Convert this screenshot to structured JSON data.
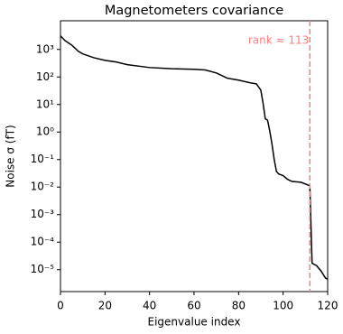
{
  "chart_data": {
    "type": "line",
    "title": "Magnetometers covariance",
    "xlabel": "Eigenvalue index",
    "ylabel": "Noise σ (fT)",
    "x": [
      0,
      2,
      5,
      8,
      10,
      15,
      20,
      25,
      30,
      40,
      50,
      60,
      65,
      70,
      75,
      80,
      85,
      88,
      90,
      91,
      92,
      93,
      94,
      95,
      96,
      97,
      98,
      100,
      102,
      104,
      108,
      111,
      112,
      113,
      115,
      117,
      119,
      120
    ],
    "series": [
      {
        "color": "#000000",
        "values": [
          3100,
          2100,
          1450,
          860,
          690,
          500,
          400,
          350,
          280,
          220,
          200,
          190,
          180,
          140,
          90,
          77,
          62,
          56,
          33,
          11,
          3,
          2.7,
          1.1,
          0.36,
          0.1,
          0.037,
          0.03,
          0.026,
          0.019,
          0.016,
          0.015,
          0.012,
          0.011,
          1.7e-05,
          1.4e-05,
          9e-06,
          5e-06,
          4.5e-06
        ]
      }
    ],
    "xlim": [
      0,
      120
    ],
    "xticks": [
      0,
      20,
      40,
      60,
      80,
      100,
      120
    ],
    "yscale": "log",
    "ylim": [
      1.6e-06,
      11000
    ],
    "yticks": [
      {
        "value": 1e-05,
        "label": "10⁻⁵"
      },
      {
        "value": 0.0001,
        "label": "10⁻⁴"
      },
      {
        "value": 0.001,
        "label": "10⁻³"
      },
      {
        "value": 0.01,
        "label": "10⁻²"
      },
      {
        "value": 0.1,
        "label": "10⁻¹"
      },
      {
        "value": 1,
        "label": "10⁰"
      },
      {
        "value": 10,
        "label": "10¹"
      },
      {
        "value": 100,
        "label": "10²"
      },
      {
        "value": 1000,
        "label": "10³"
      }
    ],
    "vline": {
      "x": 112,
      "color": "#ff7f7f",
      "label": "rank ≈ 113"
    }
  }
}
